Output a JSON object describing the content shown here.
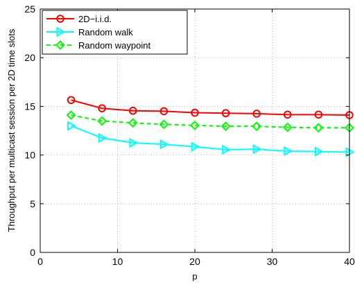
{
  "chart_data": {
    "type": "line",
    "title": "",
    "xlabel": "p",
    "ylabel": "Throughput per multicast session per 2D time slots",
    "xlim": [
      0,
      40
    ],
    "ylim": [
      0,
      25
    ],
    "xticks": [
      0,
      10,
      20,
      30,
      40
    ],
    "yticks": [
      0,
      5,
      10,
      15,
      20,
      25
    ],
    "grid": true,
    "legend_position": "top-left",
    "x": [
      4,
      8,
      12,
      16,
      20,
      24,
      28,
      32,
      36,
      40
    ],
    "series": [
      {
        "name": "2D−i.i.d.",
        "color": "#ff0000",
        "line_style": "solid",
        "marker": "circle",
        "values": [
          15.65,
          14.8,
          14.55,
          14.5,
          14.35,
          14.3,
          14.25,
          14.15,
          14.15,
          14.1
        ]
      },
      {
        "name": "Random walk",
        "color": "#00ffff",
        "line_style": "solid",
        "marker": "triangle-right",
        "values": [
          13.0,
          11.75,
          11.25,
          11.1,
          10.85,
          10.55,
          10.6,
          10.4,
          10.35,
          10.3
        ]
      },
      {
        "name": "Random waypoint",
        "color": "#00ff00",
        "line_style": "dashed",
        "marker": "diamond",
        "values": [
          14.1,
          13.5,
          13.3,
          13.15,
          13.05,
          12.95,
          12.95,
          12.85,
          12.8,
          12.8
        ]
      }
    ]
  }
}
